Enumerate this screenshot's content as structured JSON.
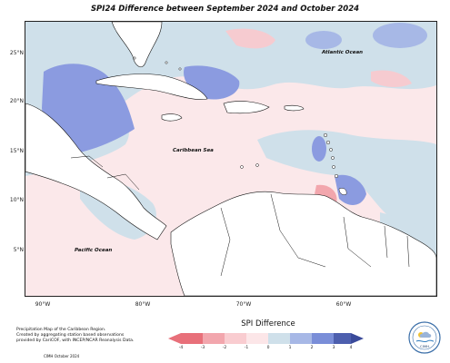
{
  "title": "SPI24 Difference between September 2024 and October 2024",
  "map": {
    "lat_labels": [
      "25°N",
      "20°N",
      "15°N",
      "10°N",
      "5°N"
    ],
    "lon_labels": [
      "90°W",
      "80°W",
      "70°W",
      "60°W"
    ],
    "places": {
      "atlantic": "Atlantic Ocean",
      "caribbean": "Caribbean Sea",
      "pacific": "Pacific Ocean"
    }
  },
  "legend": {
    "title": "SPI Difference",
    "ticks": [
      "-4",
      "-3",
      "-2",
      "-1",
      "0",
      "1",
      "2",
      "3",
      "4"
    ],
    "colors": [
      "#e8707a",
      "#f2a6ad",
      "#f9ccd0",
      "#fce6e8",
      "#cfe0ea",
      "#a7b8e6",
      "#7a8ed8",
      "#4d5fae"
    ]
  },
  "credit": {
    "line1": "Precipitation Map of the Caribbean Region.",
    "line2": "Created by aggregating station based observations",
    "line3": "provided by CariCOF, with INCEP/NCAR Reanalysis Data.",
    "date": "CIMH October 2024"
  },
  "logo": {
    "text": "CIMH"
  }
}
